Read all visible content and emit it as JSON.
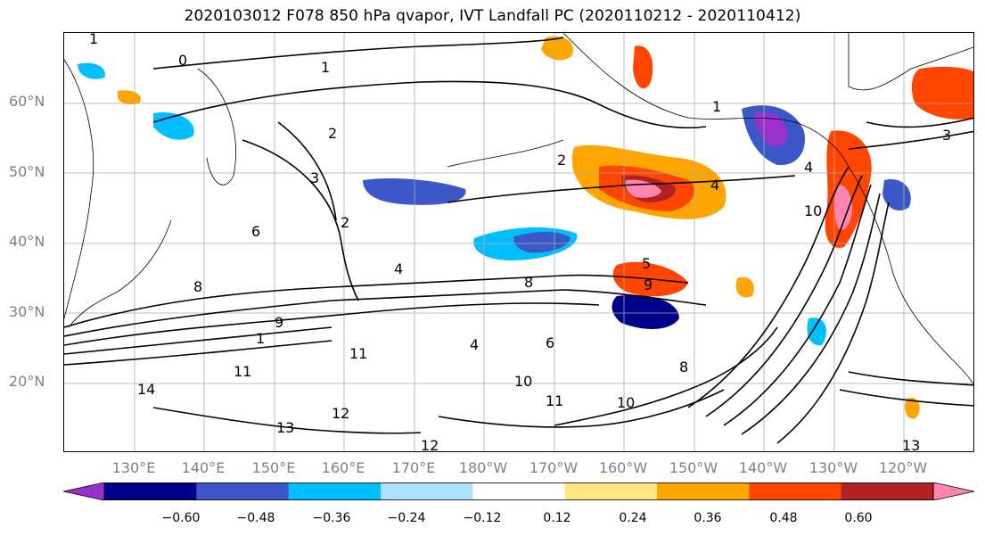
{
  "title": "2020103012 F078 850 hPa qvapor, IVT Landfall PC (2020110212 - 2020110412)",
  "lat_labels": [
    "60°N",
    "50°N",
    "40°N",
    "30°N",
    "20°N"
  ],
  "lon_labels": [
    "130°E",
    "140°E",
    "150°E",
    "160°E",
    "170°E",
    "180°W",
    "170°W",
    "160°W",
    "150°W",
    "140°W",
    "130°W",
    "120°W"
  ],
  "colorbar": {
    "colors": [
      "#9932cc",
      "#00008b",
      "#3b57c8",
      "#00bfff",
      "#aee0ff",
      "#ffffff",
      "#ffe680",
      "#ffa500",
      "#ff4500",
      "#b22222",
      "#ff85b0"
    ],
    "ticks": [
      "−0.60",
      "−0.48",
      "−0.36",
      "−0.24",
      "−0.12",
      "0.12",
      "0.24",
      "0.36",
      "0.48",
      "0.60"
    ]
  },
  "contour_labels": [
    "1",
    "1",
    "1",
    "2",
    "2",
    "2",
    "3",
    "3",
    "4",
    "4",
    "4",
    "5",
    "6",
    "6",
    "8",
    "8",
    "8",
    "9",
    "9",
    "10",
    "10",
    "11",
    "11",
    "11",
    "12",
    "12",
    "13",
    "13",
    "14",
    "0",
    "1",
    "4",
    "10"
  ]
}
